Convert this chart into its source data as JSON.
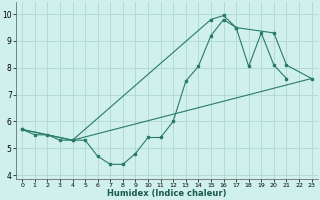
{
  "xlabel": "Humidex (Indice chaleur)",
  "background_color": "#cff0eb",
  "grid_color": "#b0d8d4",
  "line_color": "#2a7a6a",
  "xlim": [
    -0.5,
    23.5
  ],
  "ylim": [
    3.85,
    10.45
  ],
  "xticks": [
    0,
    1,
    2,
    3,
    4,
    5,
    6,
    7,
    8,
    9,
    10,
    11,
    12,
    13,
    14,
    15,
    16,
    17,
    18,
    19,
    20,
    21,
    22,
    23
  ],
  "yticks": [
    4,
    5,
    6,
    7,
    8,
    9,
    10
  ],
  "line1_x": [
    0,
    1,
    2,
    3,
    4,
    5,
    6,
    7,
    8,
    9,
    10,
    11,
    12,
    13,
    14,
    15,
    16,
    17,
    18,
    19,
    20,
    21
  ],
  "line1_y": [
    5.7,
    5.5,
    5.5,
    5.3,
    5.3,
    5.3,
    4.7,
    4.4,
    4.4,
    4.8,
    5.4,
    5.4,
    6.0,
    7.5,
    8.05,
    9.2,
    9.8,
    9.5,
    8.05,
    9.3,
    8.1,
    7.6
  ],
  "line2_x": [
    0,
    4,
    15,
    16,
    17,
    20,
    21,
    23
  ],
  "line2_y": [
    5.7,
    5.3,
    9.8,
    9.95,
    9.5,
    9.3,
    8.1,
    7.6
  ],
  "line3_x": [
    0,
    4,
    23
  ],
  "line3_y": [
    5.7,
    5.3,
    7.6
  ]
}
